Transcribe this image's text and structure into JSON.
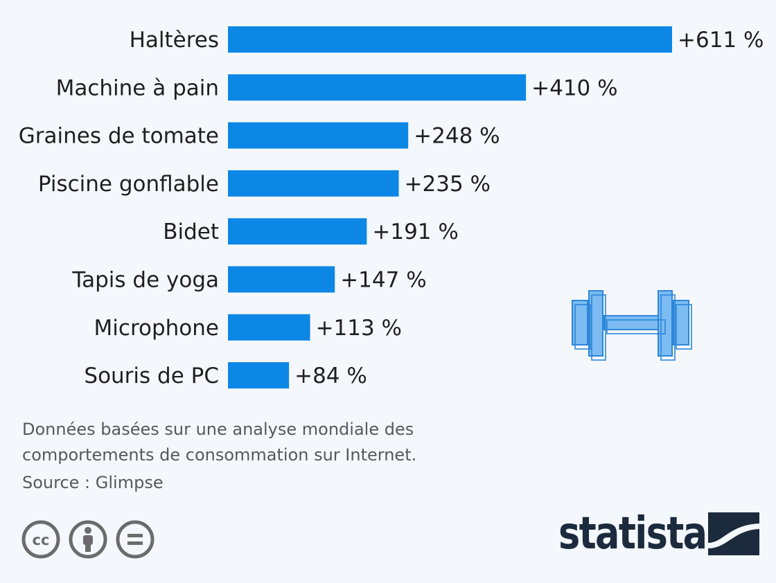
{
  "chart_data": {
    "type": "bar",
    "orientation": "horizontal",
    "categories": [
      "Haltères",
      "Machine à pain",
      "Graines de tomate",
      "Piscine gonflable",
      "Bidet",
      "Tapis de yoga",
      "Microphone",
      "Souris de PC"
    ],
    "values": [
      611,
      410,
      248,
      235,
      191,
      147,
      113,
      84
    ],
    "value_labels": [
      "+611 %",
      "+410 %",
      "+248 %",
      "+235 %",
      "+191 %",
      "+147 %",
      "+113 %",
      "+84 %"
    ],
    "title": "",
    "xlabel": "",
    "ylabel": "",
    "xlim": [
      0,
      611
    ],
    "grid": false,
    "bar_color": "#0d87e6"
  },
  "footer": {
    "note": "Données basées sur une analyse mondiale des comportements de consommation sur Internet.",
    "source": "Source : Glimpse"
  },
  "license_icons": [
    "cc-icon",
    "by-person-icon",
    "nd-equals-icon"
  ],
  "decoration": {
    "illustration": "dumbbell-icon",
    "illustration_color": "#6fb3ef"
  },
  "brand": {
    "name": "statista",
    "color": "#1b2a3d"
  }
}
